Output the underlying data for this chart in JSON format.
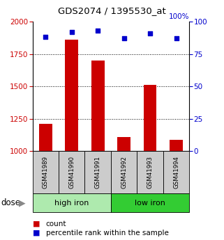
{
  "title": "GDS2074 / 1395530_at",
  "samples": [
    "GSM41989",
    "GSM41990",
    "GSM41991",
    "GSM41992",
    "GSM41993",
    "GSM41994"
  ],
  "counts": [
    1210,
    1860,
    1700,
    1110,
    1510,
    1090
  ],
  "percentiles": [
    88,
    92,
    93,
    87,
    91,
    87
  ],
  "ylim_left": [
    1000,
    2000
  ],
  "yticks_left": [
    1000,
    1250,
    1500,
    1750,
    2000
  ],
  "yticks_right": [
    0,
    25,
    50,
    75,
    100
  ],
  "groups": [
    {
      "label": "high iron",
      "indices": [
        0,
        1,
        2
      ],
      "color": "#aeeaae"
    },
    {
      "label": "low iron",
      "indices": [
        3,
        4,
        5
      ],
      "color": "#33cc33"
    }
  ],
  "bar_color": "#cc0000",
  "dot_color": "#0000cc",
  "bar_width": 0.5,
  "grid_color": "#000000",
  "background_color": "#ffffff",
  "sample_box_color": "#cccccc",
  "legend_items": [
    "count",
    "percentile rank within the sample"
  ],
  "dose_label": "dose"
}
